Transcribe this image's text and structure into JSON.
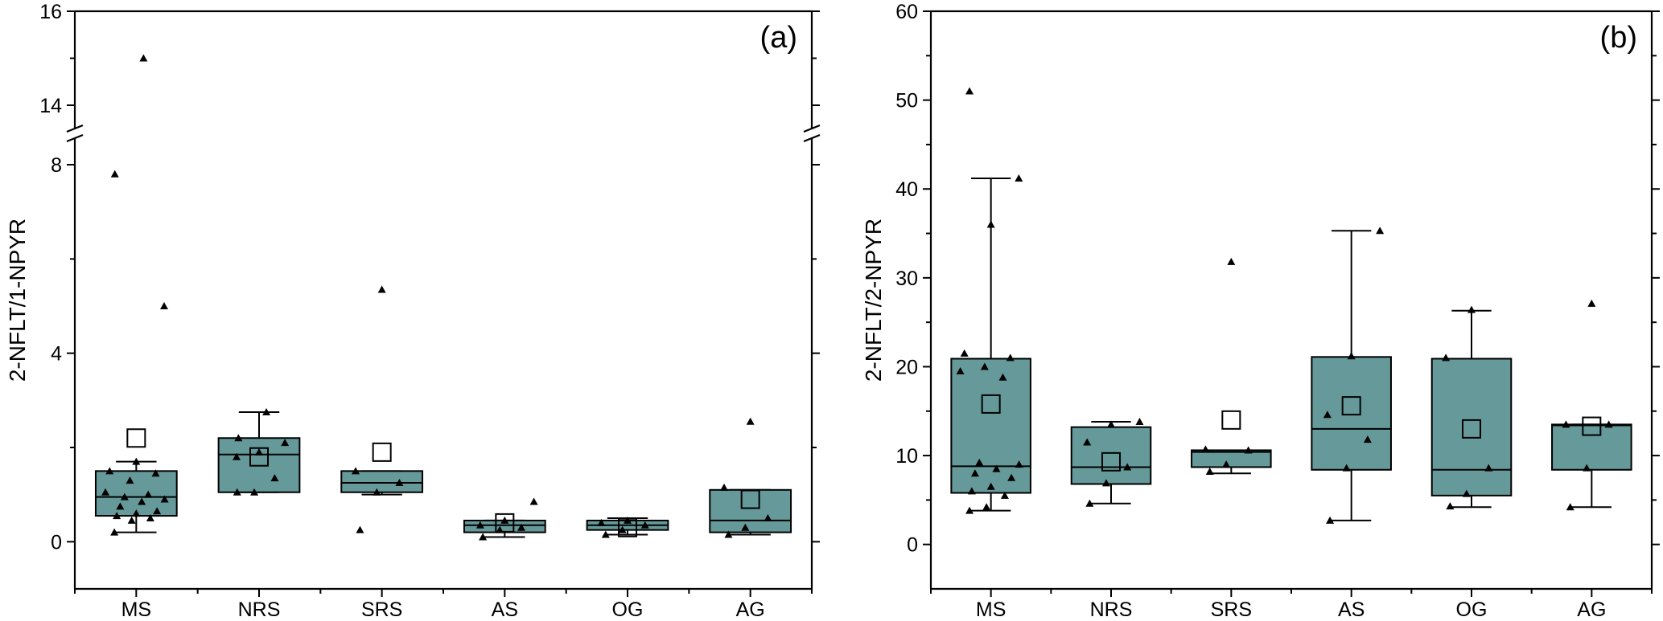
{
  "chart_data": [
    {
      "type": "box",
      "panel_label": "(a)",
      "ylabel": "2-NFLT/1-NPYR",
      "categories": [
        "MS",
        "NRS",
        "SRS",
        "AS",
        "OG",
        "AG"
      ],
      "y_axis_break": {
        "lower_range": [
          -1,
          8.5
        ],
        "upper_range": [
          13.5,
          16
        ]
      },
      "y_ticks": [
        0,
        4,
        8,
        14,
        16
      ],
      "box_color": "#669999",
      "boxes": [
        {
          "category": "MS",
          "whisker_low": 0.2,
          "q1": 0.55,
          "median": 0.95,
          "q3": 1.5,
          "whisker_high": 1.7,
          "mean": 2.2,
          "points": [
            0.2,
            0.45,
            0.5,
            0.55,
            0.6,
            0.65,
            0.75,
            0.85,
            0.9,
            0.95,
            1.0,
            1.05,
            1.3,
            1.45,
            1.5,
            1.7,
            5.0,
            7.8,
            15.0
          ]
        },
        {
          "category": "NRS",
          "whisker_low": 1.05,
          "q1": 1.05,
          "median": 1.85,
          "q3": 2.2,
          "whisker_high": 2.75,
          "mean": 1.8,
          "points": [
            1.05,
            1.05,
            1.35,
            1.8,
            1.9,
            2.1,
            2.2,
            2.75
          ]
        },
        {
          "category": "SRS",
          "whisker_low": 1.0,
          "q1": 1.05,
          "median": 1.25,
          "q3": 1.5,
          "whisker_high": 1.5,
          "mean": 1.9,
          "points": [
            0.25,
            1.05,
            1.25,
            1.5,
            5.35
          ]
        },
        {
          "category": "AS",
          "whisker_low": 0.1,
          "q1": 0.2,
          "median": 0.35,
          "q3": 0.45,
          "whisker_high": 0.45,
          "mean": 0.4,
          "points": [
            0.1,
            0.25,
            0.3,
            0.35,
            0.45,
            0.85
          ]
        },
        {
          "category": "OG",
          "whisker_low": 0.15,
          "q1": 0.25,
          "median": 0.35,
          "q3": 0.45,
          "whisker_high": 0.5,
          "mean": 0.3,
          "points": [
            0.15,
            0.25,
            0.35,
            0.4,
            0.45
          ]
        },
        {
          "category": "AG",
          "whisker_low": 0.15,
          "q1": 0.2,
          "median": 0.45,
          "q3": 1.1,
          "whisker_high": 1.1,
          "mean": 0.9,
          "points": [
            0.15,
            0.3,
            0.5,
            1.15,
            2.55
          ]
        }
      ]
    },
    {
      "type": "box",
      "panel_label": "(b)",
      "ylabel": "2-NFLT/2-NPYR",
      "categories": [
        "MS",
        "NRS",
        "SRS",
        "AS",
        "OG",
        "AG"
      ],
      "ylim": [
        -5,
        60
      ],
      "y_ticks": [
        0,
        10,
        20,
        30,
        40,
        50,
        60
      ],
      "box_color": "#669999",
      "boxes": [
        {
          "category": "MS",
          "whisker_low": 3.8,
          "q1": 5.8,
          "median": 8.8,
          "q3": 20.9,
          "whisker_high": 41.2,
          "mean": 15.8,
          "points": [
            3.8,
            4.2,
            5.5,
            6.0,
            6.5,
            7.5,
            8.0,
            8.5,
            9.0,
            9.2,
            18.8,
            19.5,
            20.0,
            21.0,
            21.5,
            36.0,
            41.2,
            51.0
          ]
        },
        {
          "category": "NRS",
          "whisker_low": 4.6,
          "q1": 6.8,
          "median": 8.7,
          "q3": 13.2,
          "whisker_high": 13.8,
          "mean": 9.3,
          "points": [
            4.6,
            6.9,
            8.7,
            11.5,
            13.5,
            13.8
          ]
        },
        {
          "category": "SRS",
          "whisker_low": 8.0,
          "q1": 8.7,
          "median": 10.4,
          "q3": 10.6,
          "whisker_high": 10.6,
          "mean": 14.0,
          "points": [
            8.2,
            9.0,
            10.6,
            10.7,
            31.8
          ]
        },
        {
          "category": "AS",
          "whisker_low": 2.7,
          "q1": 8.4,
          "median": 13.0,
          "q3": 21.1,
          "whisker_high": 35.3,
          "mean": 15.6,
          "points": [
            2.7,
            8.6,
            11.8,
            14.6,
            21.2,
            35.3
          ]
        },
        {
          "category": "OG",
          "whisker_low": 4.2,
          "q1": 5.5,
          "median": 8.4,
          "q3": 20.9,
          "whisker_high": 26.3,
          "mean": 13.0,
          "points": [
            4.3,
            5.7,
            8.6,
            21.0,
            26.4
          ]
        },
        {
          "category": "AG",
          "whisker_low": 4.2,
          "q1": 8.4,
          "median": 13.4,
          "q3": 13.5,
          "whisker_high": 13.5,
          "mean": 13.3,
          "points": [
            4.2,
            8.6,
            13.5,
            13.5,
            27.1
          ]
        }
      ]
    }
  ]
}
